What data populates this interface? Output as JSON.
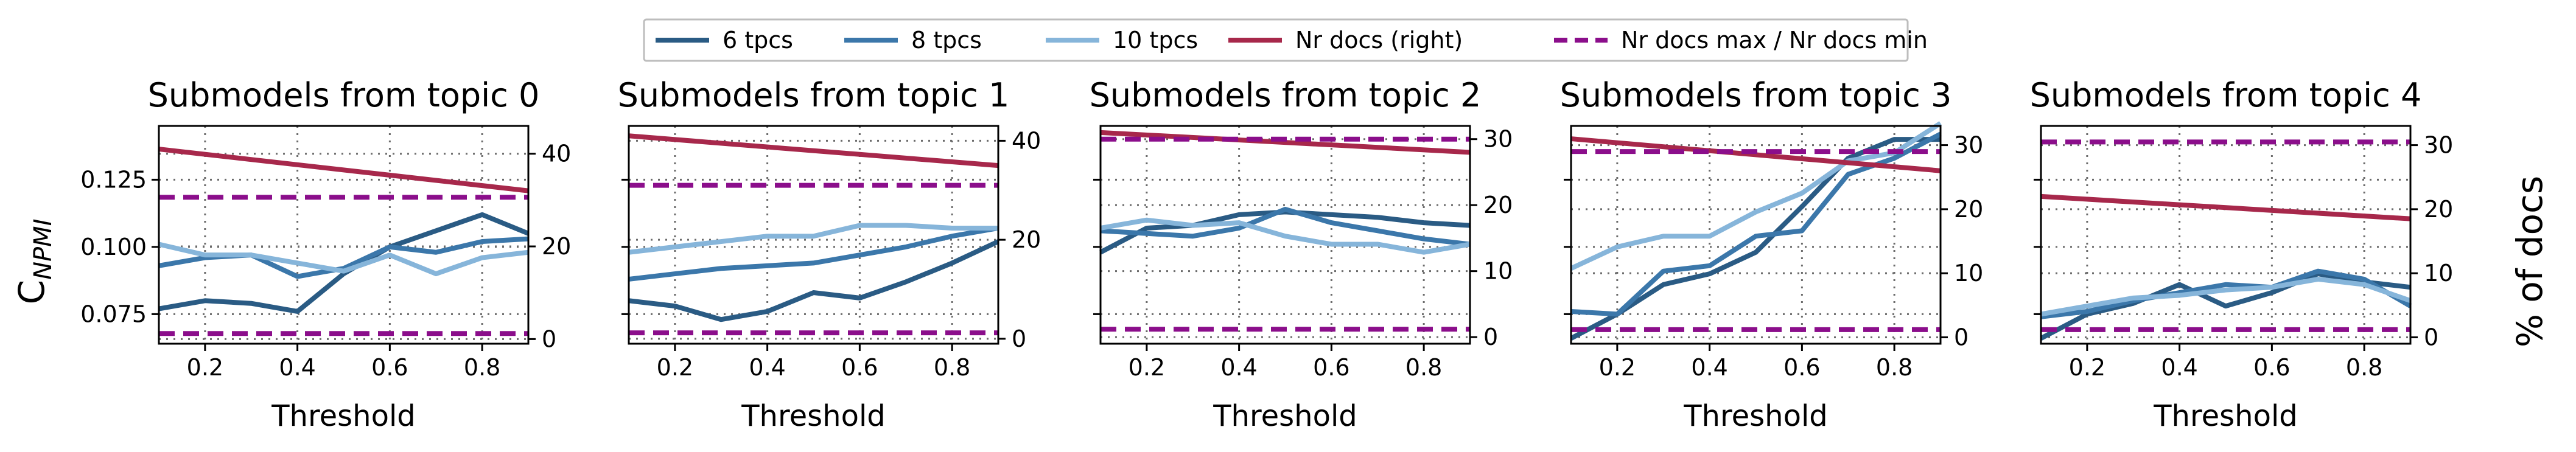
{
  "legend": {
    "items": [
      {
        "label": "6 tpcs",
        "color": "#2a5b84",
        "dash": "solid"
      },
      {
        "label": "8 tpcs",
        "color": "#3b77aa",
        "dash": "solid"
      },
      {
        "label": "10 tpcs",
        "color": "#86b5da",
        "dash": "solid"
      },
      {
        "label": "Nr docs (right)",
        "color": "#a7284b",
        "dash": "solid"
      },
      {
        "label": "Nr docs max / Nr docs min",
        "color": "#8b0e8b",
        "dash": "dashed"
      }
    ]
  },
  "shared": {
    "xlabel": "Threshold",
    "ylabel_left": "C",
    "ylabel_left_sub": "NPMI",
    "ylabel_right": "% of docs",
    "x": [
      0.1,
      0.2,
      0.3,
      0.4,
      0.5,
      0.6,
      0.7,
      0.8,
      0.9
    ],
    "xlim": [
      0.1,
      0.9
    ],
    "xticks": [
      0.2,
      0.4,
      0.6,
      0.8
    ],
    "xtick_labels": [
      "0.2",
      "0.4",
      "0.6",
      "0.8"
    ],
    "ylim_left": [
      0.064,
      0.145
    ],
    "yticks_left": [
      0.075,
      0.1,
      0.125
    ],
    "ytick_labels_left": [
      "0.075",
      "0.100",
      "0.125"
    ],
    "grid": "dotted"
  },
  "chart_data": [
    {
      "type": "line",
      "title": "Submodels from topic 0",
      "series": [
        {
          "name": "6 tpcs",
          "values": [
            0.077,
            0.08,
            0.079,
            0.076,
            0.09,
            0.1,
            0.106,
            0.112,
            0.105
          ]
        },
        {
          "name": "8 tpcs",
          "values": [
            0.093,
            0.096,
            0.097,
            0.089,
            0.092,
            0.1,
            0.098,
            0.102,
            0.103
          ]
        },
        {
          "name": "10 tpcs",
          "values": [
            0.101,
            0.097,
            0.097,
            0.094,
            0.091,
            0.097,
            0.09,
            0.096,
            0.098
          ]
        }
      ],
      "right_axis": {
        "ylim": [
          -1,
          46
        ],
        "yticks": [
          0,
          20,
          40
        ],
        "ytick_labels": [
          "0",
          "20",
          "40"
        ],
        "nr_docs": [
          41,
          32
        ],
        "max": 30.6,
        "min": 1.2
      }
    },
    {
      "type": "line",
      "title": "Submodels from topic 1",
      "series": [
        {
          "name": "6 tpcs",
          "values": [
            0.08,
            0.078,
            0.073,
            0.076,
            0.083,
            0.081,
            0.087,
            0.094,
            0.102
          ]
        },
        {
          "name": "8 tpcs",
          "values": [
            0.088,
            0.09,
            0.092,
            0.093,
            0.094,
            0.097,
            0.1,
            0.104,
            0.107
          ]
        },
        {
          "name": "10 tpcs",
          "values": [
            0.098,
            0.1,
            0.102,
            0.104,
            0.104,
            0.108,
            0.108,
            0.107,
            0.107
          ]
        }
      ],
      "right_axis": {
        "ylim": [
          -1,
          43
        ],
        "yticks": [
          0,
          20,
          40
        ],
        "ytick_labels": [
          "0",
          "20",
          "40"
        ],
        "nr_docs": [
          41,
          35
        ],
        "max": 31,
        "min": 1.2
      }
    },
    {
      "type": "line",
      "title": "Submodels from topic 2",
      "series": [
        {
          "name": "6 tpcs",
          "values": [
            0.098,
            0.107,
            0.108,
            0.112,
            0.113,
            0.112,
            0.111,
            0.109,
            0.108
          ]
        },
        {
          "name": "8 tpcs",
          "values": [
            0.106,
            0.105,
            0.104,
            0.107,
            0.114,
            0.109,
            0.106,
            0.103,
            0.101
          ]
        },
        {
          "name": "10 tpcs",
          "values": [
            0.107,
            0.11,
            0.108,
            0.109,
            0.104,
            0.101,
            0.101,
            0.098,
            0.101
          ]
        }
      ],
      "right_axis": {
        "ylim": [
          -1,
          32
        ],
        "yticks": [
          0,
          10,
          20,
          30
        ],
        "ytick_labels": [
          "0",
          "10",
          "20",
          "30"
        ],
        "nr_docs": [
          31,
          28
        ],
        "max": 30,
        "min": 1.2
      }
    },
    {
      "type": "line",
      "title": "Submodels from topic 3",
      "series": [
        {
          "name": "6 tpcs",
          "values": [
            0.066,
            0.075,
            0.086,
            0.09,
            0.098,
            0.115,
            0.133,
            0.14,
            0.14
          ]
        },
        {
          "name": "8 tpcs",
          "values": [
            0.076,
            0.075,
            0.091,
            0.093,
            0.104,
            0.106,
            0.127,
            0.133,
            0.142
          ]
        },
        {
          "name": "10 tpcs",
          "values": [
            0.092,
            0.1,
            0.104,
            0.104,
            0.113,
            0.12,
            0.132,
            0.135,
            0.146
          ]
        }
      ],
      "right_axis": {
        "ylim": [
          -1,
          33
        ],
        "yticks": [
          0,
          10,
          20,
          30
        ],
        "ytick_labels": [
          "0",
          "10",
          "20",
          "30"
        ],
        "nr_docs": [
          31,
          26
        ],
        "max": 29,
        "min": 1.2
      }
    },
    {
      "type": "line",
      "title": "Submodels from topic 4",
      "series": [
        {
          "name": "6 tpcs",
          "values": [
            0.066,
            0.075,
            0.079,
            0.086,
            0.078,
            0.083,
            0.09,
            0.087,
            0.085
          ]
        },
        {
          "name": "8 tpcs",
          "values": [
            0.074,
            0.076,
            0.08,
            0.083,
            0.086,
            0.085,
            0.091,
            0.088,
            0.078
          ]
        },
        {
          "name": "10 tpcs",
          "values": [
            0.075,
            0.078,
            0.081,
            0.082,
            0.084,
            0.085,
            0.088,
            0.086,
            0.08
          ]
        }
      ],
      "right_axis": {
        "ylim": [
          -1,
          33
        ],
        "yticks": [
          0,
          10,
          20,
          30
        ],
        "ytick_labels": [
          "0",
          "10",
          "20",
          "30"
        ],
        "nr_docs": [
          22,
          18.5
        ],
        "max": 30.5,
        "min": 1.2
      }
    }
  ]
}
